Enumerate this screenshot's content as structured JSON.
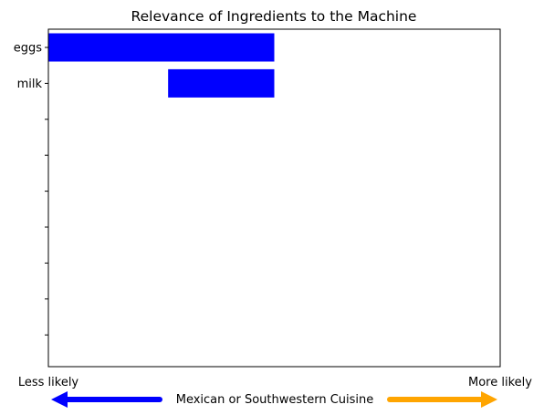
{
  "chart_data": {
    "type": "bar",
    "orientation": "horizontal",
    "title": "Relevance of Ingredients to the Machine",
    "categories": [
      "eggs",
      "milk",
      "",
      "",
      "",
      "",
      "",
      "",
      ""
    ],
    "series": [
      {
        "bars": [
          [
            -1.0,
            0.0
          ],
          [
            -0.47,
            0.0
          ]
        ]
      }
    ],
    "bar_color": "#0000ff",
    "xlim": [
      -1.0,
      1.0
    ],
    "x_tick_labels": [
      "Less likely",
      "More likely"
    ],
    "xlabel": "Mexican or Southwestern Cuisine",
    "arrow_left_color": "#0000ff",
    "arrow_right_color": "#ffa500",
    "grid": false
  }
}
